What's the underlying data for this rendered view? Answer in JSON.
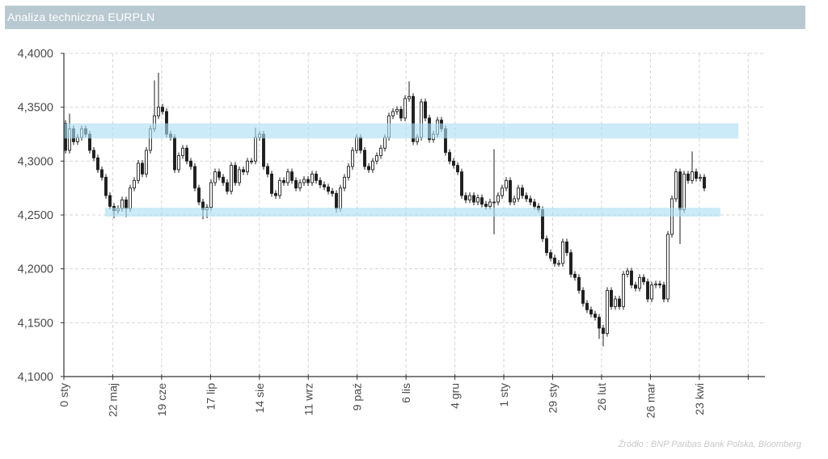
{
  "header": {
    "title": "Analiza techniczna EURPLN"
  },
  "footer": {
    "source": "Źródło : BNP Paribas Bank Polska, Bloomberg"
  },
  "colors": {
    "title_bar": "#b9c9d1",
    "band": "#aadff2",
    "candle_up_fill": "#ffffff",
    "candle_down_fill": "#1e1e1e",
    "candle_stroke": "#1e1e1e",
    "grid": "#d6d6d6",
    "axis": "#333333"
  },
  "chart_data": {
    "type": "line",
    "style": "candlestick",
    "title": "Analiza techniczna EURPLN",
    "xlabel": "",
    "ylabel": "",
    "ylim": [
      4.1,
      4.4
    ],
    "y_ticks": [
      "4,4000",
      "4,3500",
      "4,3000",
      "4,2500",
      "4,2000",
      "4,1500",
      "4,1000"
    ],
    "y_tick_values": [
      4.4,
      4.35,
      4.3,
      4.25,
      4.2,
      4.15,
      4.1
    ],
    "categories": [
      "0 sty",
      "22 maj",
      "19 cze",
      "17 lip",
      "14 sie",
      "11 wrz",
      "9 paź",
      "6 lis",
      "4 gru",
      "1 sty",
      "29 sty",
      "26 lut",
      "26 mar",
      "23 kwi",
      ""
    ],
    "grid": true,
    "legend": "none",
    "bands": [
      {
        "name": "resistance-zone",
        "from": 4.321,
        "to": 4.335,
        "x_start_tick": 0.0,
        "x_end_tick": 13.8
      },
      {
        "name": "support-zone",
        "from": 4.2485,
        "to": 4.2567,
        "x_start_tick": 0.84,
        "x_end_tick": 13.43
      }
    ],
    "series": [
      {
        "name": "EURPLN",
        "open_first": 4.335,
        "values": [
          4.31,
          4.33,
          4.318,
          4.322,
          4.33,
          4.325,
          4.31,
          4.303,
          4.292,
          4.285,
          4.268,
          4.258,
          4.254,
          4.256,
          4.264,
          4.256,
          4.275,
          4.282,
          4.298,
          4.288,
          4.31,
          4.33,
          4.342,
          4.35,
          4.346,
          4.325,
          4.322,
          4.292,
          4.305,
          4.312,
          4.3,
          4.295,
          4.275,
          4.262,
          4.255,
          4.257,
          4.28,
          4.29,
          4.285,
          4.28,
          4.272,
          4.296,
          4.28,
          4.292,
          4.29,
          4.3,
          4.3,
          4.322,
          4.325,
          4.295,
          4.288,
          4.27,
          4.268,
          4.282,
          4.28,
          4.29,
          4.282,
          4.275,
          4.28,
          4.283,
          4.28,
          4.288,
          4.282,
          4.278,
          4.276,
          4.272,
          4.27,
          4.256,
          4.275,
          4.285,
          4.295,
          4.31,
          4.322,
          4.31,
          4.295,
          4.292,
          4.3,
          4.305,
          4.312,
          4.322,
          4.342,
          4.346,
          4.348,
          4.34,
          4.358,
          4.36,
          4.318,
          4.322,
          4.355,
          4.34,
          4.32,
          4.325,
          4.338,
          4.33,
          4.308,
          4.3,
          4.296,
          4.29,
          4.268,
          4.264,
          4.268,
          4.262,
          4.266,
          4.26,
          4.258,
          4.262,
          4.262,
          4.268,
          4.275,
          4.282,
          4.262,
          4.265,
          4.275,
          4.268,
          4.265,
          4.262,
          4.258,
          4.255,
          4.228,
          4.215,
          4.21,
          4.205,
          4.205,
          4.225,
          4.215,
          4.195,
          4.192,
          4.18,
          4.168,
          4.162,
          4.158,
          4.155,
          4.145,
          4.14,
          4.18,
          4.165,
          4.172,
          4.165,
          4.195,
          4.198,
          4.185,
          4.182,
          4.192,
          4.188,
          4.172,
          4.185,
          4.186,
          4.185,
          4.172,
          4.232,
          4.265,
          4.29,
          4.255,
          4.288,
          4.282,
          4.29,
          4.284,
          4.285,
          4.275
        ],
        "extremes": [
          {
            "i": 1,
            "high": 4.344
          },
          {
            "i": 12,
            "low": 4.247
          },
          {
            "i": 15,
            "low": 4.248
          },
          {
            "i": 22,
            "high": 4.375
          },
          {
            "i": 23,
            "high": 4.382
          },
          {
            "i": 34,
            "low": 4.246
          },
          {
            "i": 35,
            "low": 4.247
          },
          {
            "i": 47,
            "high": 4.331
          },
          {
            "i": 67,
            "low": 4.252
          },
          {
            "i": 85,
            "high": 4.374
          },
          {
            "i": 106,
            "high": 4.311,
            "low": 4.232
          },
          {
            "i": 132,
            "low": 4.135
          },
          {
            "i": 133,
            "low": 4.128
          },
          {
            "i": 152,
            "low": 4.223
          },
          {
            "i": 155,
            "high": 4.309
          }
        ]
      }
    ]
  }
}
